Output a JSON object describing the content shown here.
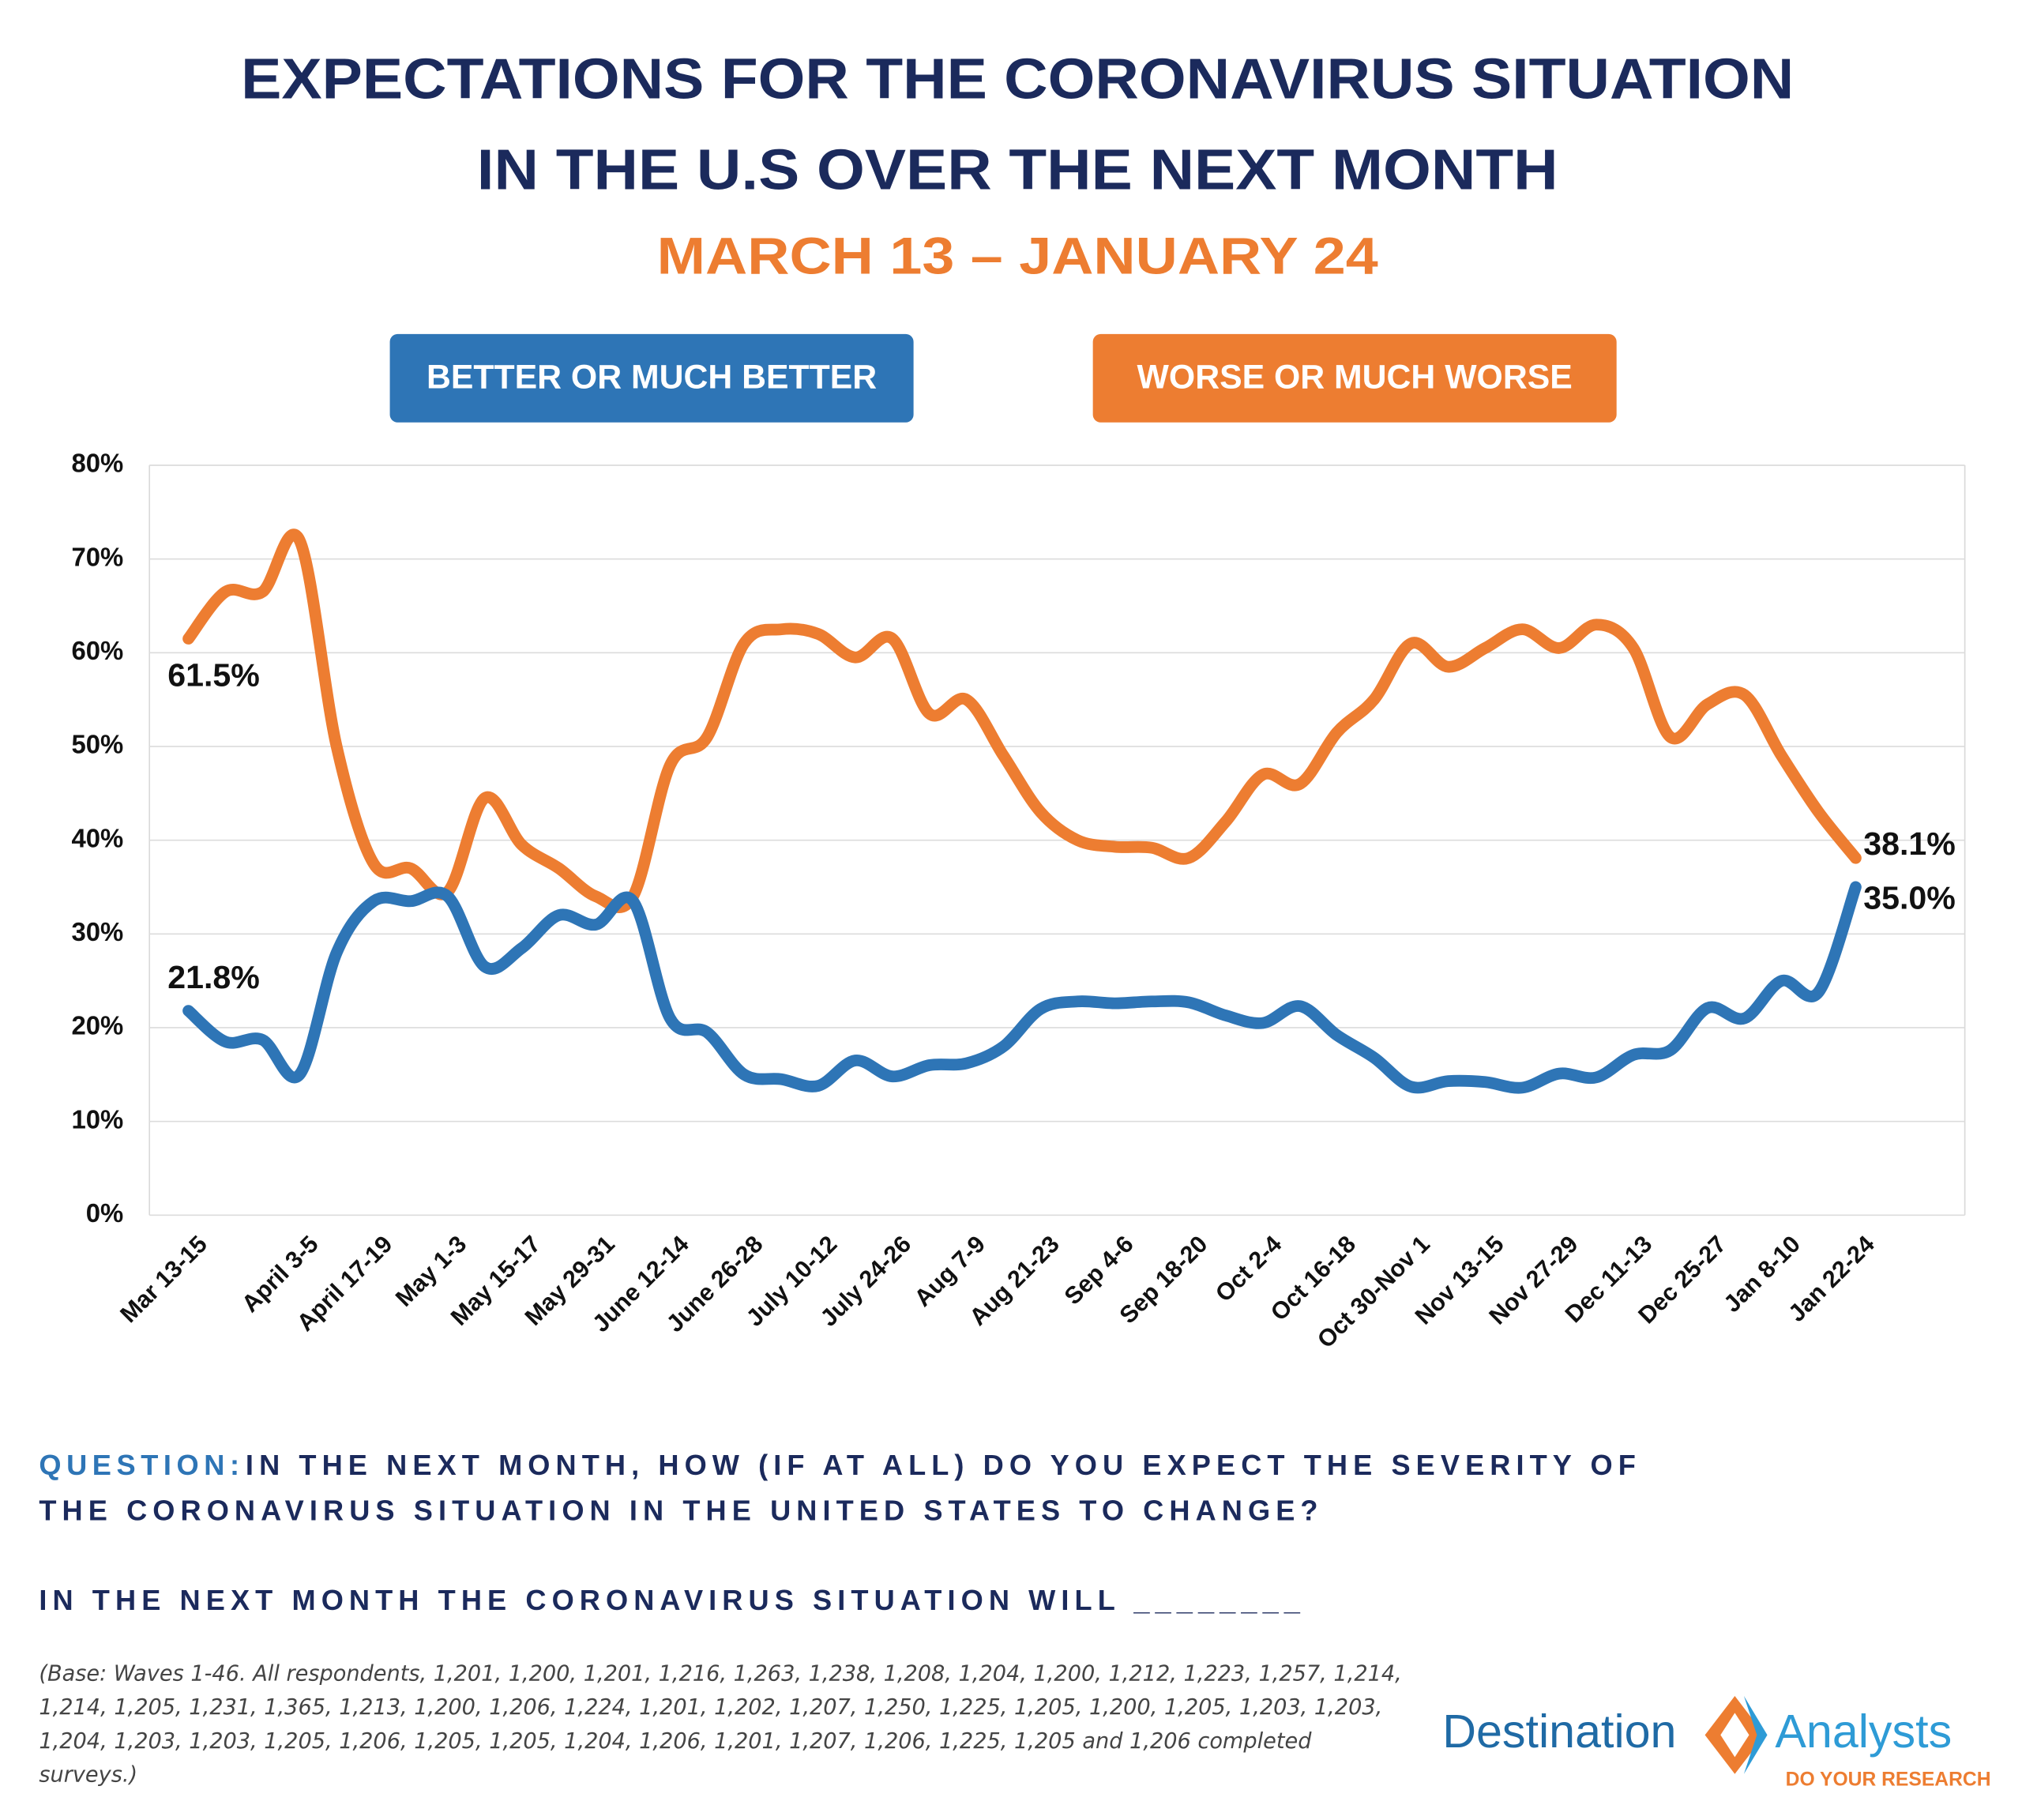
{
  "chart_data": {
    "type": "line",
    "title": [
      "EXPECTATIONS FOR THE CORONAVIRUS SITUATION",
      "IN THE U.S OVER THE NEXT MONTH"
    ],
    "subtitle": "MARCH 13 – JANUARY 24",
    "categories": [
      "Mar 13-15",
      null,
      null,
      "April 3-5",
      null,
      "April 17-19",
      null,
      "May 1-3",
      null,
      "May 15-17",
      null,
      "May 29-31",
      null,
      "June 12-14",
      null,
      "June 26-28",
      null,
      "July 10-12",
      null,
      "July 24-26",
      null,
      "Aug 7-9",
      null,
      "Aug 21-23",
      null,
      "Sep 4-6",
      null,
      "Sep 18-20",
      null,
      "Oct 2-4",
      null,
      "Oct 16-18",
      null,
      "Oct 30-Nov 1",
      null,
      "Nov 13-15",
      null,
      "Nov 27-29",
      null,
      "Dec 11-13",
      null,
      "Dec 25-27",
      null,
      "Jan 8-10",
      null,
      "Jan 22-24"
    ],
    "series": [
      {
        "name": "BETTER OR MUCH BETTER",
        "color": "#2e75b6",
        "values": [
          21.8,
          18.5,
          18.7,
          15,
          28,
          33.5,
          33.5,
          34,
          26.5,
          28.5,
          32,
          31,
          33.5,
          21,
          19.5,
          15,
          14.5,
          13.8,
          16.5,
          14.8,
          16,
          16.2,
          18,
          22,
          22.8,
          22.6,
          22.8,
          22.7,
          21.3,
          20.5,
          22.3,
          19.2,
          16.8,
          13.7,
          14.3,
          14.2,
          13.6,
          15.1,
          14.7,
          17.1,
          17.6,
          22.1,
          21,
          25,
          23.8,
          35.0
        ],
        "value_labels": [
          "21.8%",
          null,
          null,
          null,
          null,
          null,
          null,
          null,
          null,
          null,
          null,
          null,
          null,
          null,
          null,
          null,
          null,
          null,
          null,
          null,
          null,
          null,
          null,
          null,
          null,
          null,
          null,
          null,
          null,
          null,
          null,
          null,
          null,
          null,
          null,
          null,
          null,
          null,
          null,
          null,
          null,
          null,
          null,
          null,
          null,
          "35.0%"
        ]
      },
      {
        "name": "WORSE OR MUCH WORSE",
        "color": "#ed7d31",
        "values": [
          61.5,
          66.5,
          66.5,
          72,
          50,
          37.5,
          37,
          34.5,
          44.5,
          39.5,
          37,
          34,
          34,
          48,
          51,
          61,
          62.5,
          62,
          59.5,
          61.5,
          53.5,
          55,
          49,
          43,
          40,
          39.3,
          39.2,
          38.1,
          42,
          47,
          46,
          51.5,
          55,
          61,
          58.5,
          60.5,
          62.5,
          60.5,
          63,
          60.5,
          51,
          54.5,
          55.5,
          49,
          43,
          38.1
        ],
        "value_labels": [
          "61.5%",
          null,
          null,
          null,
          null,
          null,
          null,
          null,
          null,
          null,
          null,
          null,
          null,
          null,
          null,
          null,
          null,
          null,
          null,
          null,
          null,
          null,
          null,
          null,
          null,
          null,
          null,
          null,
          null,
          null,
          null,
          null,
          null,
          null,
          null,
          null,
          null,
          null,
          null,
          null,
          null,
          null,
          null,
          null,
          null,
          "38.1%"
        ]
      }
    ],
    "ylim": [
      0,
      80
    ],
    "yticks": [
      {
        "value": 0,
        "label": "0%"
      },
      {
        "value": 10,
        "label": "10%"
      },
      {
        "value": 20,
        "label": "20%"
      },
      {
        "value": 30,
        "label": "30%"
      },
      {
        "value": 40,
        "label": "40%"
      },
      {
        "value": 50,
        "label": "50%"
      },
      {
        "value": 60,
        "label": "60%"
      },
      {
        "value": 70,
        "label": "70%"
      },
      {
        "value": 80,
        "label": "80%"
      }
    ],
    "grid": true,
    "legend": "top",
    "question_label": "QUESTION:",
    "question": [
      "IN THE NEXT MONTH, HOW (IF AT ALL) DO YOU EXPECT THE SEVERITY OF",
      "THE CORONAVIRUS SITUATION IN THE UNITED STATES TO CHANGE?"
    ],
    "statement": "IN THE NEXT MONTH THE CORONAVIRUS SITUATION WILL ________",
    "note": "(Base: Waves 1-46. All respondents, 1,201, 1,200, 1,201, 1,216, 1,263, 1,238, 1,208, 1,204, 1,200, 1,212, 1,223, 1,257, 1,214, 1,214, 1,205, 1,231, 1,365, 1,213, 1,200, 1,206, 1,224, 1,201, 1,202, 1,207, 1,250, 1,225, 1,205, 1,200, 1,205, 1,203, 1,203, 1,204, 1,203, 1,203, 1,205, 1,206, 1,205, 1,205, 1,204, 1,206, 1,201, 1,207, 1,206, 1,225, 1,205 and 1,206 completed surveys.)",
    "logo": [
      "Destination",
      "Analysts",
      "DO YOUR RESEARCH"
    ]
  }
}
